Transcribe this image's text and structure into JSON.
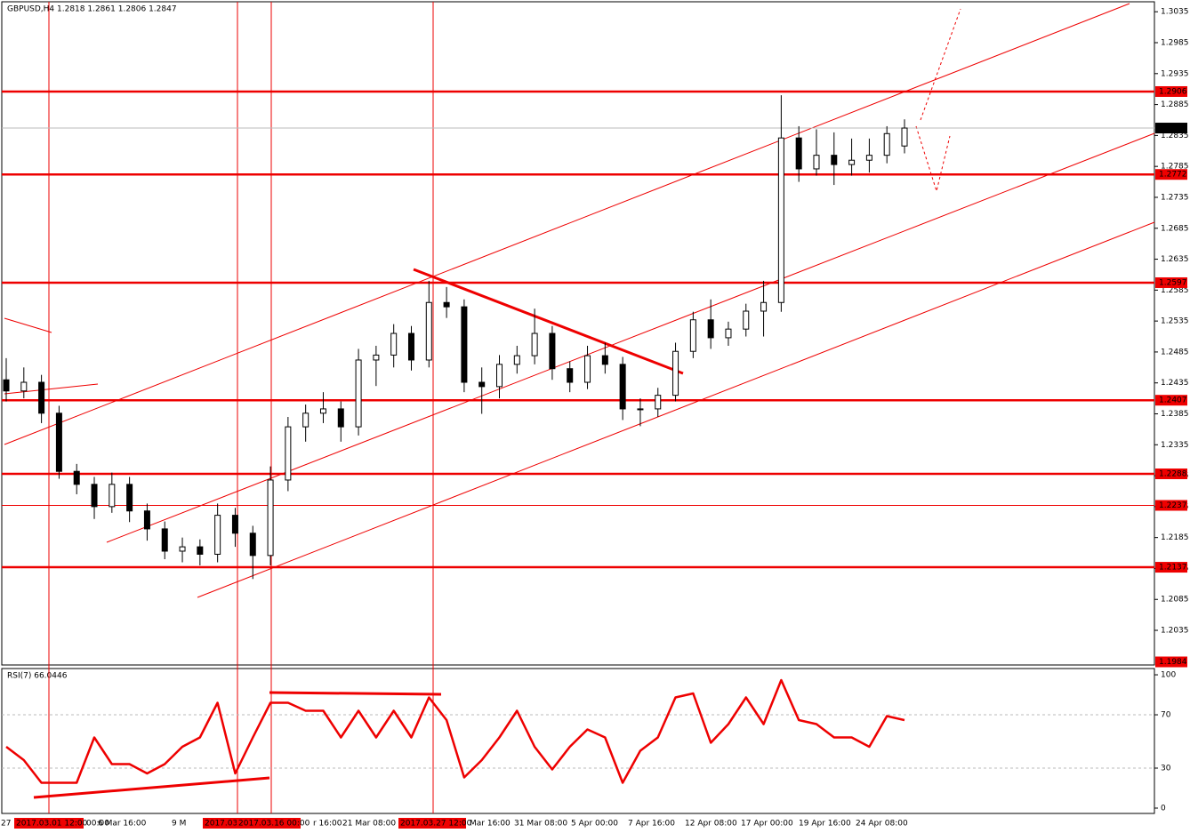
{
  "chart_data": {
    "type": "candlestick",
    "title": "GBPUSD,H4  1.2818 1.2861 1.2806 1.2847",
    "ylim": [
      1.1979,
      1.3054
    ],
    "yticks": [
      1.3035,
      1.2985,
      1.2935,
      1.2885,
      1.2835,
      1.2785,
      1.2735,
      1.2685,
      1.2635,
      1.2585,
      1.2535,
      1.2485,
      1.2435,
      1.2385,
      1.2335,
      1.2285,
      1.2235,
      1.2185,
      1.2135,
      1.2085,
      1.2035
    ],
    "opens": [
      1.244,
      1.2422,
      1.2436,
      1.2386,
      1.2292,
      1.2271,
      1.2235,
      1.2271,
      1.2228,
      1.2199,
      1.2163,
      1.217,
      1.2158,
      1.2221,
      1.2192,
      1.2156,
      1.2278,
      1.2364,
      1.2386,
      1.2393,
      1.2364,
      1.2472,
      1.248,
      1.2515,
      1.2472,
      1.2565,
      1.2558,
      1.2436,
      1.2429,
      1.2465,
      1.2479,
      1.2515,
      1.2458,
      1.2436,
      1.2479,
      1.2465,
      1.2393,
      1.2393,
      1.2415,
      1.2486,
      1.2537,
      1.2508,
      1.2522,
      1.2551,
      1.2565,
      1.2831,
      1.2781,
      1.2803,
      1.2788,
      1.2795,
      1.2803,
      1.2818
    ],
    "highs": [
      1.2475,
      1.246,
      1.2448,
      1.2398,
      1.2304,
      1.2283,
      1.229,
      1.2283,
      1.224,
      1.2211,
      1.2185,
      1.2182,
      1.224,
      1.2233,
      1.2204,
      1.23,
      1.238,
      1.24,
      1.242,
      1.2405,
      1.249,
      1.2495,
      1.253,
      1.2527,
      1.26,
      1.259,
      1.257,
      1.246,
      1.248,
      1.2495,
      1.2555,
      1.2527,
      1.247,
      1.2495,
      1.25,
      1.2477,
      1.241,
      1.2427,
      1.25,
      1.255,
      1.257,
      1.2534,
      1.2563,
      1.26,
      1.29,
      1.285,
      1.2845,
      1.284,
      1.283,
      1.283,
      1.285,
      1.2861
    ],
    "lows": [
      1.2405,
      1.241,
      1.237,
      1.228,
      1.2255,
      1.2215,
      1.2225,
      1.221,
      1.218,
      1.215,
      1.2145,
      1.214,
      1.2145,
      1.217,
      1.2118,
      1.214,
      1.226,
      1.234,
      1.237,
      1.234,
      1.235,
      1.243,
      1.246,
      1.2455,
      1.246,
      1.254,
      1.242,
      1.2385,
      1.241,
      1.245,
      1.2465,
      1.244,
      1.242,
      1.2425,
      1.245,
      1.2375,
      1.2365,
      1.238,
      1.2405,
      1.2475,
      1.249,
      1.2495,
      1.251,
      1.251,
      1.255,
      1.276,
      1.277,
      1.2755,
      1.277,
      1.2775,
      1.279,
      1.2806
    ],
    "closes": [
      1.2422,
      1.2436,
      1.2386,
      1.2292,
      1.2271,
      1.2235,
      1.2271,
      1.2228,
      1.2199,
      1.2163,
      1.217,
      1.2158,
      1.2221,
      1.2192,
      1.2156,
      1.2278,
      1.2364,
      1.2386,
      1.2393,
      1.2364,
      1.2472,
      1.248,
      1.2515,
      1.2472,
      1.2565,
      1.2558,
      1.2436,
      1.2429,
      1.2465,
      1.2479,
      1.2515,
      1.2458,
      1.2436,
      1.2479,
      1.2465,
      1.2393,
      1.2393,
      1.2415,
      1.2486,
      1.2537,
      1.2508,
      1.2522,
      1.2551,
      1.2565,
      1.2831,
      1.2781,
      1.2803,
      1.2788,
      1.2795,
      1.2803,
      1.2838,
      1.2847
    ],
    "levels": [
      1.2906,
      1.2772,
      1.2597,
      1.2407,
      1.2288,
      1.2137
    ],
    "thin_levels": [
      1.2237
    ],
    "current_price": 1.2847,
    "low_marker": 1.1984,
    "x_labels": [
      "27",
      "00:00",
      "6 Mar 16:00",
      "9 M",
      "r 16:00",
      "21 Mar 08:00",
      "Mar 16:00",
      "31 Mar 08:00",
      "5 Apr 00:00",
      "7 Apr 16:00",
      "12 Apr 08:00",
      "17 Apr 00:00",
      "19 Apr 16:00",
      "24 Apr 08:00"
    ],
    "vlines": [
      "2017.03.01 12:00",
      "2017.03.",
      "2017.03.16 00:00",
      "2017.03.27 12:00"
    ],
    "rsi": {
      "label": "RSI(7) 66.0446",
      "ylim": [
        -4,
        104.7
      ],
      "yticks": [
        0,
        30,
        70,
        100
      ],
      "levels": [
        30,
        70
      ],
      "color": "#ee0000",
      "values": [
        46,
        36,
        19,
        19,
        19,
        53,
        33,
        33,
        26,
        33,
        46,
        53,
        79,
        26,
        53,
        79,
        79,
        73,
        73,
        53,
        73,
        53,
        73,
        53,
        83,
        66,
        23,
        36,
        53,
        73,
        46,
        29,
        46,
        59,
        53,
        19,
        43,
        53,
        83,
        86,
        49,
        63,
        83,
        63,
        96,
        66,
        63,
        53,
        53,
        46,
        69,
        66.0446
      ]
    }
  }
}
